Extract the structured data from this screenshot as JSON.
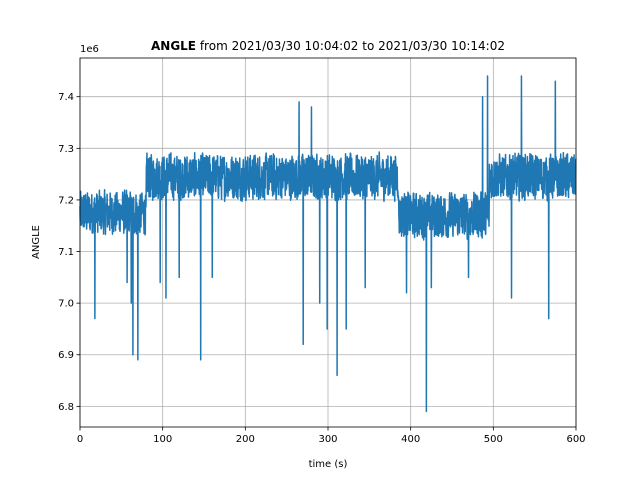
{
  "chart_data": {
    "type": "line",
    "title_bold": "ANGLE",
    "title_rest": " from 2021/03/30 10:04:02 to 2021/03/30 10:14:02",
    "xlabel": "time (s)",
    "ylabel": "ANGLE",
    "offset_label": "1e6",
    "xlim": [
      0,
      600
    ],
    "ylim": [
      6.76,
      7.475
    ],
    "xticks": [
      0,
      100,
      200,
      300,
      400,
      500,
      600
    ],
    "xtick_labels": [
      "0",
      "100",
      "200",
      "300",
      "400",
      "500",
      "600"
    ],
    "yticks": [
      6.8,
      6.9,
      7.0,
      7.1,
      7.2,
      7.3,
      7.4
    ],
    "ytick_labels": [
      "6.8",
      "6.9",
      "7.0",
      "7.1",
      "7.2",
      "7.3",
      "7.4"
    ],
    "grid": true,
    "line_color": "#1f77b4",
    "segments": [
      {
        "x0": 0,
        "x1": 80,
        "mean": 7.175,
        "spread": 0.048
      },
      {
        "x0": 80,
        "x1": 385,
        "mean": 7.245,
        "spread": 0.05
      },
      {
        "x0": 385,
        "x1": 495,
        "mean": 7.17,
        "spread": 0.05
      },
      {
        "x0": 495,
        "x1": 600,
        "mean": 7.245,
        "spread": 0.05
      }
    ],
    "spikes": [
      {
        "x": 18,
        "y": 6.97
      },
      {
        "x": 57,
        "y": 7.04
      },
      {
        "x": 62,
        "y": 7.0
      },
      {
        "x": 64,
        "y": 6.9
      },
      {
        "x": 70,
        "y": 6.89
      },
      {
        "x": 97,
        "y": 7.04
      },
      {
        "x": 104,
        "y": 7.01
      },
      {
        "x": 120,
        "y": 7.05
      },
      {
        "x": 146,
        "y": 6.89
      },
      {
        "x": 160,
        "y": 7.05
      },
      {
        "x": 270,
        "y": 6.92
      },
      {
        "x": 290,
        "y": 7.0
      },
      {
        "x": 299,
        "y": 6.95
      },
      {
        "x": 311,
        "y": 6.86
      },
      {
        "x": 322,
        "y": 6.95
      },
      {
        "x": 345,
        "y": 7.03
      },
      {
        "x": 395,
        "y": 7.02
      },
      {
        "x": 419,
        "y": 6.79
      },
      {
        "x": 425,
        "y": 7.03
      },
      {
        "x": 470,
        "y": 7.05
      },
      {
        "x": 522,
        "y": 7.01
      },
      {
        "x": 567,
        "y": 6.97
      },
      {
        "x": 493,
        "y": 7.44
      },
      {
        "x": 534,
        "y": 7.44
      },
      {
        "x": 575,
        "y": 7.43
      },
      {
        "x": 487,
        "y": 7.4
      },
      {
        "x": 265,
        "y": 7.39
      },
      {
        "x": 280,
        "y": 7.38
      }
    ]
  }
}
